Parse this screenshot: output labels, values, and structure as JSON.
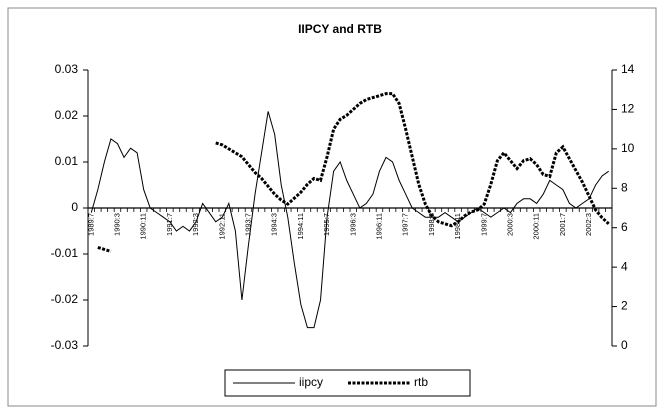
{
  "chart_data": {
    "type": "line",
    "title": "IIPCY and RTB",
    "categories": [
      "1989:7",
      null,
      null,
      null,
      "1990:3",
      null,
      null,
      null,
      "1990:11",
      null,
      null,
      null,
      "1991:7",
      null,
      null,
      null,
      "1992:3",
      null,
      null,
      null,
      "1992:11",
      null,
      null,
      null,
      "1993:7",
      null,
      null,
      null,
      "1994:3",
      null,
      null,
      null,
      "1994:11",
      null,
      null,
      null,
      "1995:7",
      null,
      null,
      null,
      "1996:3",
      null,
      null,
      null,
      "1996:11",
      null,
      null,
      null,
      "1997:7",
      null,
      null,
      null,
      "1998:3",
      null,
      null,
      null,
      "1998:11",
      null,
      null,
      null,
      "1999:7",
      null,
      null,
      null,
      "2000:3",
      null,
      null,
      null,
      "2000:11",
      null,
      null,
      null,
      "2001:7",
      null,
      null,
      null,
      "2002:3",
      null,
      null,
      null
    ],
    "series": [
      {
        "name": "iipcy",
        "color": "#000000",
        "dash": "solid",
        "axis": "y",
        "values": [
          -0.001,
          0.004,
          0.01,
          0.015,
          0.014,
          0.011,
          0.013,
          0.012,
          0.004,
          0.0,
          -0.001,
          -0.002,
          -0.003,
          -0.005,
          -0.004,
          -0.005,
          -0.003,
          0.001,
          -0.001,
          -0.003,
          -0.002,
          0.001,
          -0.005,
          -0.02,
          -0.008,
          0.003,
          0.012,
          0.021,
          0.016,
          0.005,
          -0.002,
          -0.012,
          -0.021,
          -0.026,
          -0.026,
          -0.02,
          -0.002,
          0.008,
          0.01,
          0.006,
          0.003,
          0.0,
          0.001,
          0.003,
          0.008,
          0.011,
          0.01,
          0.006,
          0.003,
          0.0,
          -0.001,
          -0.002,
          -0.002,
          -0.002,
          -0.001,
          -0.002,
          -0.003,
          -0.002,
          -0.001,
          0.0,
          -0.001,
          -0.002,
          -0.001,
          0.0,
          -0.001,
          0.001,
          0.002,
          0.002,
          0.001,
          0.003,
          0.006,
          0.005,
          0.004,
          0.001,
          0.0,
          0.001,
          0.002,
          0.005,
          0.007,
          0.008
        ]
      },
      {
        "name": "rtb",
        "color": "#000000",
        "dash": "dotted",
        "axis": "y2",
        "values": [
          null,
          5.0,
          4.9,
          4.8,
          null,
          null,
          null,
          null,
          null,
          null,
          null,
          null,
          null,
          null,
          null,
          null,
          null,
          null,
          null,
          10.3,
          10.2,
          10,
          9.8,
          9.6,
          9.2,
          8.8,
          8.5,
          8.1,
          7.7,
          7.4,
          7.2,
          7.5,
          7.8,
          8.2,
          8.5,
          8.4,
          9.6,
          11,
          11.5,
          11.7,
          12,
          12.3,
          12.5,
          12.6,
          12.7,
          12.8,
          12.8,
          12.3,
          11,
          9.6,
          8.2,
          7.2,
          6.6,
          6.3,
          6.2,
          6.1,
          6.3,
          6.6,
          6.8,
          6.9,
          7.2,
          8.2,
          9.4,
          9.8,
          9.4,
          9.0,
          9.4,
          9.5,
          9.2,
          8.7,
          8.6,
          9.8,
          10.1,
          9.5,
          8.9,
          8.3,
          7.6,
          6.9,
          6.5,
          6.2
        ]
      }
    ],
    "ylim": [
      -0.03,
      0.03
    ],
    "yticks": [
      0.03,
      0.02,
      0.01,
      0,
      -0.01,
      -0.02,
      -0.03
    ],
    "y2lim": [
      0,
      14
    ],
    "y2ticks": [
      14,
      12,
      10,
      8,
      6,
      4,
      2,
      0
    ],
    "grid": false,
    "legend": "bottom"
  }
}
